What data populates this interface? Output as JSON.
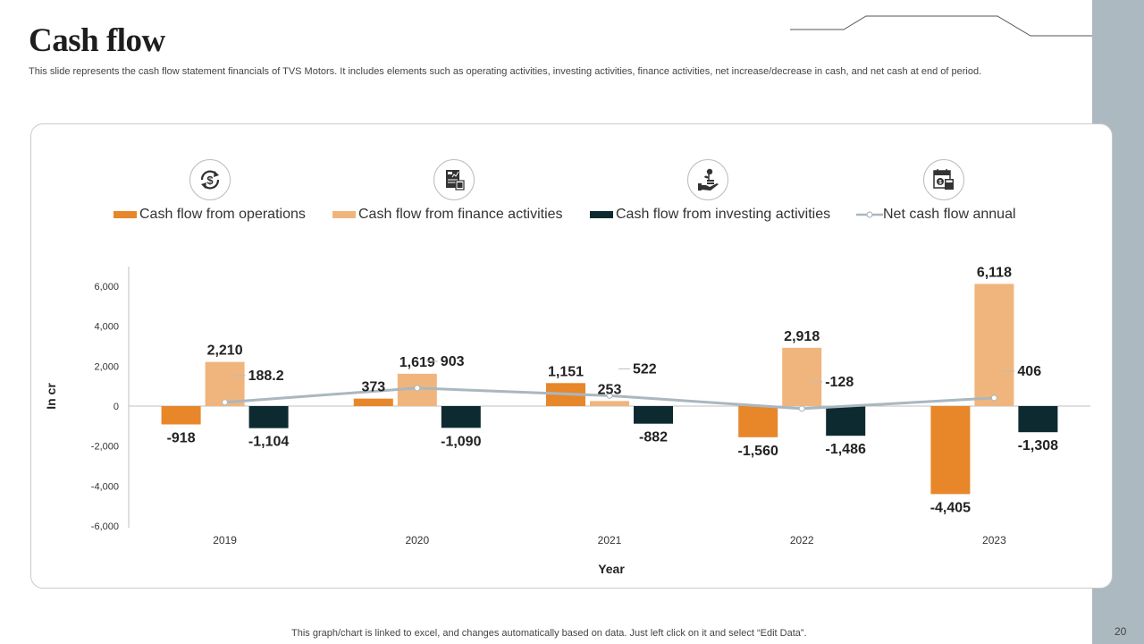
{
  "slide": {
    "title": "Cash flow",
    "subtitle": "This slide represents the cash flow statement financials of TVS Motors. It includes elements such as operating activities, investing activities, finance activities, net increase/decrease in cash, and net cash at end of period.",
    "footer_note": "This graph/chart is linked to excel, and changes automatically based on data. Just left click on it and select “Edit Data”.",
    "page_number": "20"
  },
  "icons": [
    {
      "name": "dollar-cycle-icon",
      "series": "Cash flow from operations"
    },
    {
      "name": "financial-report-calculator-icon",
      "series": "Cash flow from finance activities"
    },
    {
      "name": "hand-plant-coins-icon",
      "series": "Cash flow from investing activities"
    },
    {
      "name": "calendar-dollar-calculator-icon",
      "series": "Net cash flow annual"
    }
  ],
  "legend": [
    {
      "label": "Cash flow from operations",
      "color": "#e8862a",
      "type": "bar"
    },
    {
      "label": "Cash flow from finance activities",
      "color": "#f0b57d",
      "type": "bar"
    },
    {
      "label": "Cash flow from investing activities",
      "color": "#0d2a30",
      "type": "bar"
    },
    {
      "label": "Net cash flow annual",
      "color": "#aab7bf",
      "type": "line"
    }
  ],
  "chart_data": {
    "type": "bar",
    "title": "",
    "xlabel": "Year",
    "ylabel": "In cr",
    "categories": [
      "2019",
      "2020",
      "2021",
      "2022",
      "2023"
    ],
    "ylim": [
      -6000,
      6000
    ],
    "yticks": [
      6000,
      4000,
      2000,
      0,
      -2000,
      -4000,
      -6000
    ],
    "ytick_labels": [
      "6,000",
      "4,000",
      "2,000",
      "0",
      "-2,000",
      "-4,000",
      "-6,000"
    ],
    "grid": false,
    "legend_position": "top",
    "series": [
      {
        "name": "Cash flow from operations",
        "type": "bar",
        "color": "#e8862a",
        "values": [
          -918,
          373,
          1151,
          -1560,
          -4405
        ],
        "labels": [
          "-918",
          "373",
          "1,151",
          "-1,560",
          "-4,405"
        ]
      },
      {
        "name": "Cash flow from finance activities",
        "type": "bar",
        "color": "#f0b57d",
        "values": [
          2210,
          1619,
          253,
          2918,
          6118
        ],
        "labels": [
          "2,210",
          "1,619",
          "253",
          "2,918",
          "6,118"
        ]
      },
      {
        "name": "Cash flow from investing activities",
        "type": "bar",
        "color": "#0d2a30",
        "values": [
          -1104,
          -1090,
          -882,
          -1486,
          -1308
        ],
        "labels": [
          "-1,104",
          "-1,090",
          "-882",
          "-1,486",
          "-1,308"
        ]
      },
      {
        "name": "Net cash flow annual",
        "type": "line",
        "color": "#aab7bf",
        "values": [
          188.2,
          903,
          522,
          -128,
          406
        ],
        "labels": [
          "188.2",
          "903",
          "522",
          "-128",
          "406"
        ]
      }
    ]
  }
}
